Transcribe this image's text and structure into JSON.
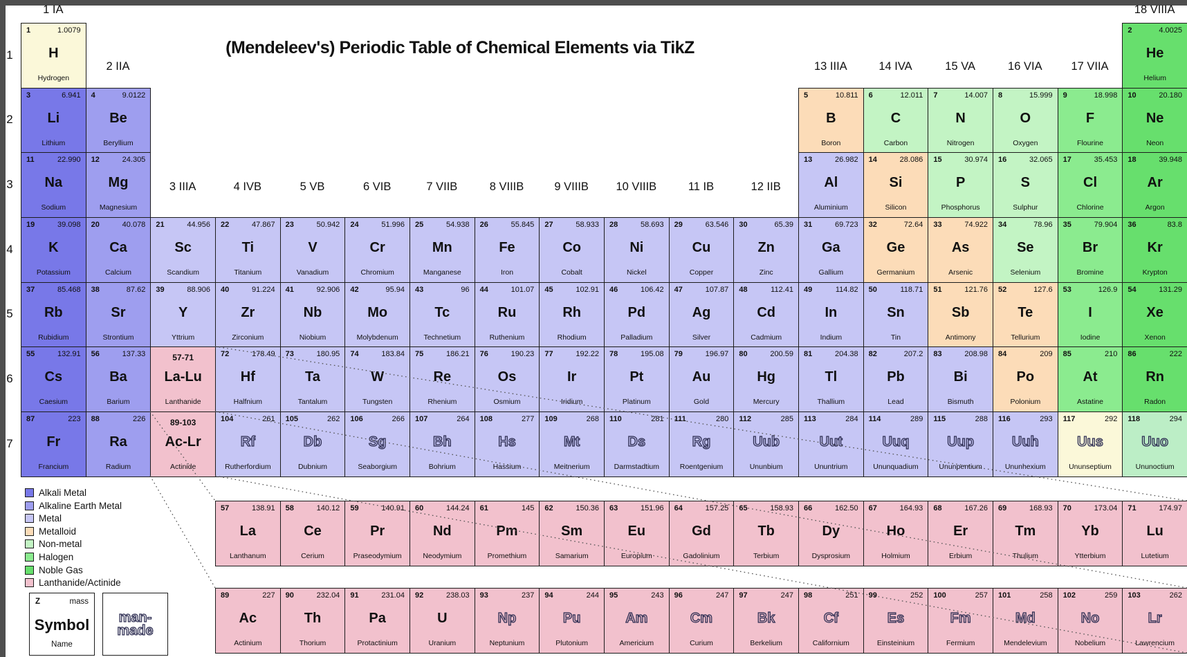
{
  "title": "(Mendeleev's) Periodic Table of Chemical Elements via TikZ",
  "colors": {
    "element": "#FBF8D9",
    "alkali": "#7878E8",
    "alkearth": "#9E9EEF",
    "metal": "#C6C6F5",
    "metalloid": "#FCDCB8",
    "nonmetal": "#C3F4C4",
    "halogen": "#8BEB8F",
    "noble": "#67DF6D",
    "noble_light": "#BCEEC6",
    "series": "#F2C1CD",
    "border": "#1C1C1C",
    "edge_strip": "#4E4E4E",
    "dotted_line": "#555555"
  },
  "period_labels": [
    "1",
    "2",
    "3",
    "4",
    "5",
    "6",
    "7"
  ],
  "group_labels": [
    {
      "c": 1,
      "band": "t",
      "label": "1 IA"
    },
    {
      "c": 18,
      "band": "t",
      "label": "18 VIIIA"
    },
    {
      "c": 2,
      "band": "m1",
      "label": "2 IIA"
    },
    {
      "c": 13,
      "band": "m1",
      "label": "13 IIIA"
    },
    {
      "c": 14,
      "band": "m1",
      "label": "14 IVA"
    },
    {
      "c": 15,
      "band": "m1",
      "label": "15 VA"
    },
    {
      "c": 16,
      "band": "m1",
      "label": "16 VIA"
    },
    {
      "c": 17,
      "band": "m1",
      "label": "17 VIIA"
    },
    {
      "c": 3,
      "band": "m3",
      "label": "3 IIIA"
    },
    {
      "c": 4,
      "band": "m3",
      "label": "4 IVB"
    },
    {
      "c": 5,
      "band": "m3",
      "label": "5 VB"
    },
    {
      "c": 6,
      "band": "m3",
      "label": "6 VIB"
    },
    {
      "c": 7,
      "band": "m3",
      "label": "7 VIIB"
    },
    {
      "c": 8,
      "band": "m3",
      "label": "8 VIIIB"
    },
    {
      "c": 9,
      "band": "m3",
      "label": "9 VIIIB"
    },
    {
      "c": 10,
      "band": "m3",
      "label": "10 VIIIB"
    },
    {
      "c": 11,
      "band": "m3",
      "label": "11 IB"
    },
    {
      "c": 12,
      "band": "m3",
      "label": "12 IIB"
    }
  ],
  "elements_schema": [
    "row",
    "col",
    "number",
    "mass",
    "symbol",
    "name",
    "category",
    "man_made"
  ],
  "elements": [
    [
      1,
      1,
      "1",
      "1.0079",
      "H",
      "Hydrogen",
      "element",
      0
    ],
    [
      1,
      18,
      "2",
      "4.0025",
      "He",
      "Helium",
      "noble",
      0
    ],
    [
      2,
      1,
      "3",
      "6.941",
      "Li",
      "Lithium",
      "alkali",
      0
    ],
    [
      2,
      2,
      "4",
      "9.0122",
      "Be",
      "Beryllium",
      "alkearth",
      0
    ],
    [
      2,
      13,
      "5",
      "10.811",
      "B",
      "Boron",
      "metalloid",
      0
    ],
    [
      2,
      14,
      "6",
      "12.011",
      "C",
      "Carbon",
      "nonmetal",
      0
    ],
    [
      2,
      15,
      "7",
      "14.007",
      "N",
      "Nitrogen",
      "nonmetal",
      0
    ],
    [
      2,
      16,
      "8",
      "15.999",
      "O",
      "Oxygen",
      "nonmetal",
      0
    ],
    [
      2,
      17,
      "9",
      "18.998",
      "F",
      "Flourine",
      "halogen",
      0
    ],
    [
      2,
      18,
      "10",
      "20.180",
      "Ne",
      "Neon",
      "noble",
      0
    ],
    [
      3,
      1,
      "11",
      "22.990",
      "Na",
      "Sodium",
      "alkali",
      0
    ],
    [
      3,
      2,
      "12",
      "24.305",
      "Mg",
      "Magnesium",
      "alkearth",
      0
    ],
    [
      3,
      13,
      "13",
      "26.982",
      "Al",
      "Aluminium",
      "metal",
      0
    ],
    [
      3,
      14,
      "14",
      "28.086",
      "Si",
      "Silicon",
      "metalloid",
      0
    ],
    [
      3,
      15,
      "15",
      "30.974",
      "P",
      "Phosphorus",
      "nonmetal",
      0
    ],
    [
      3,
      16,
      "16",
      "32.065",
      "S",
      "Sulphur",
      "nonmetal",
      0
    ],
    [
      3,
      17,
      "17",
      "35.453",
      "Cl",
      "Chlorine",
      "halogen",
      0
    ],
    [
      3,
      18,
      "18",
      "39.948",
      "Ar",
      "Argon",
      "noble",
      0
    ],
    [
      4,
      1,
      "19",
      "39.098",
      "K",
      "Potassium",
      "alkali",
      0
    ],
    [
      4,
      2,
      "20",
      "40.078",
      "Ca",
      "Calcium",
      "alkearth",
      0
    ],
    [
      4,
      3,
      "21",
      "44.956",
      "Sc",
      "Scandium",
      "metal",
      0
    ],
    [
      4,
      4,
      "22",
      "47.867",
      "Ti",
      "Titanium",
      "metal",
      0
    ],
    [
      4,
      5,
      "23",
      "50.942",
      "V",
      "Vanadium",
      "metal",
      0
    ],
    [
      4,
      6,
      "24",
      "51.996",
      "Cr",
      "Chromium",
      "metal",
      0
    ],
    [
      4,
      7,
      "25",
      "54.938",
      "Mn",
      "Manganese",
      "metal",
      0
    ],
    [
      4,
      8,
      "26",
      "55.845",
      "Fe",
      "Iron",
      "metal",
      0
    ],
    [
      4,
      9,
      "27",
      "58.933",
      "Co",
      "Cobalt",
      "metal",
      0
    ],
    [
      4,
      10,
      "28",
      "58.693",
      "Ni",
      "Nickel",
      "metal",
      0
    ],
    [
      4,
      11,
      "29",
      "63.546",
      "Cu",
      "Copper",
      "metal",
      0
    ],
    [
      4,
      12,
      "30",
      "65.39",
      "Zn",
      "Zinc",
      "metal",
      0
    ],
    [
      4,
      13,
      "31",
      "69.723",
      "Ga",
      "Gallium",
      "metal",
      0
    ],
    [
      4,
      14,
      "32",
      "72.64",
      "Ge",
      "Germanium",
      "metalloid",
      0
    ],
    [
      4,
      15,
      "33",
      "74.922",
      "As",
      "Arsenic",
      "metalloid",
      0
    ],
    [
      4,
      16,
      "34",
      "78.96",
      "Se",
      "Selenium",
      "nonmetal",
      0
    ],
    [
      4,
      17,
      "35",
      "79.904",
      "Br",
      "Bromine",
      "halogen",
      0
    ],
    [
      4,
      18,
      "36",
      "83.8",
      "Kr",
      "Krypton",
      "noble",
      0
    ],
    [
      5,
      1,
      "37",
      "85.468",
      "Rb",
      "Rubidium",
      "alkali",
      0
    ],
    [
      5,
      2,
      "38",
      "87.62",
      "Sr",
      "Strontium",
      "alkearth",
      0
    ],
    [
      5,
      3,
      "39",
      "88.906",
      "Y",
      "Yttrium",
      "metal",
      0
    ],
    [
      5,
      4,
      "40",
      "91.224",
      "Zr",
      "Zirconium",
      "metal",
      0
    ],
    [
      5,
      5,
      "41",
      "92.906",
      "Nb",
      "Niobium",
      "metal",
      0
    ],
    [
      5,
      6,
      "42",
      "95.94",
      "Mo",
      "Molybdenum",
      "metal",
      0
    ],
    [
      5,
      7,
      "43",
      "96",
      "Tc",
      "Technetium",
      "metal",
      0
    ],
    [
      5,
      8,
      "44",
      "101.07",
      "Ru",
      "Ruthenium",
      "metal",
      0
    ],
    [
      5,
      9,
      "45",
      "102.91",
      "Rh",
      "Rhodium",
      "metal",
      0
    ],
    [
      5,
      10,
      "46",
      "106.42",
      "Pd",
      "Palladium",
      "metal",
      0
    ],
    [
      5,
      11,
      "47",
      "107.87",
      "Ag",
      "Silver",
      "metal",
      0
    ],
    [
      5,
      12,
      "48",
      "112.41",
      "Cd",
      "Cadmium",
      "metal",
      0
    ],
    [
      5,
      13,
      "49",
      "114.82",
      "In",
      "Indium",
      "metal",
      0
    ],
    [
      5,
      14,
      "50",
      "118.71",
      "Sn",
      "Tin",
      "metal",
      0
    ],
    [
      5,
      15,
      "51",
      "121.76",
      "Sb",
      "Antimony",
      "metalloid",
      0
    ],
    [
      5,
      16,
      "52",
      "127.6",
      "Te",
      "Tellurium",
      "metalloid",
      0
    ],
    [
      5,
      17,
      "53",
      "126.9",
      "I",
      "Iodine",
      "halogen",
      0
    ],
    [
      5,
      18,
      "54",
      "131.29",
      "Xe",
      "Xenon",
      "noble",
      0
    ],
    [
      6,
      1,
      "55",
      "132.91",
      "Cs",
      "Caesium",
      "alkali",
      0
    ],
    [
      6,
      2,
      "56",
      "137.33",
      "Ba",
      "Barium",
      "alkearth",
      0
    ],
    [
      6,
      4,
      "72",
      "178.49",
      "Hf",
      "Halfnium",
      "metal",
      0
    ],
    [
      6,
      5,
      "73",
      "180.95",
      "Ta",
      "Tantalum",
      "metal",
      0
    ],
    [
      6,
      6,
      "74",
      "183.84",
      "W",
      "Tungsten",
      "metal",
      0
    ],
    [
      6,
      7,
      "75",
      "186.21",
      "Re",
      "Rhenium",
      "metal",
      0
    ],
    [
      6,
      8,
      "76",
      "190.23",
      "Os",
      "Osmium",
      "metal",
      0
    ],
    [
      6,
      9,
      "77",
      "192.22",
      "Ir",
      "Iridium",
      "metal",
      0
    ],
    [
      6,
      10,
      "78",
      "195.08",
      "Pt",
      "Platinum",
      "metal",
      0
    ],
    [
      6,
      11,
      "79",
      "196.97",
      "Au",
      "Gold",
      "metal",
      0
    ],
    [
      6,
      12,
      "80",
      "200.59",
      "Hg",
      "Mercury",
      "metal",
      0
    ],
    [
      6,
      13,
      "81",
      "204.38",
      "Tl",
      "Thallium",
      "metal",
      0
    ],
    [
      6,
      14,
      "82",
      "207.2",
      "Pb",
      "Lead",
      "metal",
      0
    ],
    [
      6,
      15,
      "83",
      "208.98",
      "Bi",
      "Bismuth",
      "metal",
      0
    ],
    [
      6,
      16,
      "84",
      "209",
      "Po",
      "Polonium",
      "metalloid",
      0
    ],
    [
      6,
      17,
      "85",
      "210",
      "At",
      "Astatine",
      "halogen",
      0
    ],
    [
      6,
      18,
      "86",
      "222",
      "Rn",
      "Radon",
      "noble",
      0
    ],
    [
      7,
      1,
      "87",
      "223",
      "Fr",
      "Francium",
      "alkali",
      0
    ],
    [
      7,
      2,
      "88",
      "226",
      "Ra",
      "Radium",
      "alkearth",
      0
    ],
    [
      7,
      4,
      "104",
      "261",
      "Rf",
      "Rutherfordium",
      "metal",
      1
    ],
    [
      7,
      5,
      "105",
      "262",
      "Db",
      "Dubnium",
      "metal",
      1
    ],
    [
      7,
      6,
      "106",
      "266",
      "Sg",
      "Seaborgium",
      "metal",
      1
    ],
    [
      7,
      7,
      "107",
      "264",
      "Bh",
      "Bohrium",
      "metal",
      1
    ],
    [
      7,
      8,
      "108",
      "277",
      "Hs",
      "Hassium",
      "metal",
      1
    ],
    [
      7,
      9,
      "109",
      "268",
      "Mt",
      "Meitnerium",
      "metal",
      1
    ],
    [
      7,
      10,
      "110",
      "281",
      "Ds",
      "Darmstadtium",
      "metal",
      1
    ],
    [
      7,
      11,
      "111",
      "280",
      "Rg",
      "Roentgenium",
      "metal",
      1
    ],
    [
      7,
      12,
      "112",
      "285",
      "Uub",
      "Ununbium",
      "metal",
      1
    ],
    [
      7,
      13,
      "113",
      "284",
      "Uut",
      "Ununtrium",
      "metal",
      1
    ],
    [
      7,
      14,
      "114",
      "289",
      "Uuq",
      "Ununquadium",
      "metal",
      1
    ],
    [
      7,
      15,
      "115",
      "288",
      "Uup",
      "Ununpentium",
      "metal",
      1
    ],
    [
      7,
      16,
      "116",
      "293",
      "Uuh",
      "Ununhexium",
      "metal",
      1
    ],
    [
      7,
      17,
      "117",
      "292",
      "Uus",
      "Ununseptium",
      "element",
      1
    ],
    [
      7,
      18,
      "118",
      "294",
      "Uuo",
      "Ununoctium",
      "noble_light",
      1
    ]
  ],
  "series_cells": [
    {
      "row": 6,
      "col": 3,
      "range": "57-71",
      "symbol": "La-Lu",
      "name": "Lanthanide"
    },
    {
      "row": 7,
      "col": 3,
      "range": "89-103",
      "symbol": "Ac-Lr",
      "name": "Actinide"
    }
  ],
  "lanthanides": [
    [
      "57",
      "138.91",
      "La",
      "Lanthanum",
      0
    ],
    [
      "58",
      "140.12",
      "Ce",
      "Cerium",
      0
    ],
    [
      "59",
      "140.91",
      "Pr",
      "Praseodymium",
      0
    ],
    [
      "60",
      "144.24",
      "Nd",
      "Neodymium",
      0
    ],
    [
      "61",
      "145",
      "Pm",
      "Promethium",
      0
    ],
    [
      "62",
      "150.36",
      "Sm",
      "Samarium",
      0
    ],
    [
      "63",
      "151.96",
      "Eu",
      "Europium",
      0
    ],
    [
      "64",
      "157.25",
      "Gd",
      "Gadolinium",
      0
    ],
    [
      "65",
      "158.93",
      "Tb",
      "Terbium",
      0
    ],
    [
      "66",
      "162.50",
      "Dy",
      "Dysprosium",
      0
    ],
    [
      "67",
      "164.93",
      "Ho",
      "Holmium",
      0
    ],
    [
      "68",
      "167.26",
      "Er",
      "Erbium",
      0
    ],
    [
      "69",
      "168.93",
      "Tm",
      "Thulium",
      0
    ],
    [
      "70",
      "173.04",
      "Yb",
      "Ytterbium",
      0
    ],
    [
      "71",
      "174.97",
      "Lu",
      "Lutetium",
      0
    ]
  ],
  "actinides": [
    [
      "89",
      "227",
      "Ac",
      "Actinium",
      0
    ],
    [
      "90",
      "232.04",
      "Th",
      "Thorium",
      0
    ],
    [
      "91",
      "231.04",
      "Pa",
      "Protactinium",
      0
    ],
    [
      "92",
      "238.03",
      "U",
      "Uranium",
      0
    ],
    [
      "93",
      "237",
      "Np",
      "Neptunium",
      1
    ],
    [
      "94",
      "244",
      "Pu",
      "Plutonium",
      1
    ],
    [
      "95",
      "243",
      "Am",
      "Americium",
      1
    ],
    [
      "96",
      "247",
      "Cm",
      "Curium",
      1
    ],
    [
      "97",
      "247",
      "Bk",
      "Berkelium",
      1
    ],
    [
      "98",
      "251",
      "Cf",
      "Californium",
      1
    ],
    [
      "99",
      "252",
      "Es",
      "Einsteinium",
      1
    ],
    [
      "100",
      "257",
      "Fm",
      "Fermium",
      1
    ],
    [
      "101",
      "258",
      "Md",
      "Mendelevium",
      1
    ],
    [
      "102",
      "259",
      "No",
      "Nobelium",
      1
    ],
    [
      "103",
      "262",
      "Lr",
      "Lawrencium",
      1
    ]
  ],
  "legend": [
    {
      "label": "Alkali Metal",
      "color_key": "alkali"
    },
    {
      "label": "Alkaline Earth Metal",
      "color_key": "alkearth"
    },
    {
      "label": "Metal",
      "color_key": "metal"
    },
    {
      "label": "Metalloid",
      "color_key": "metalloid"
    },
    {
      "label": "Non-metal",
      "color_key": "nonmetal"
    },
    {
      "label": "Halogen",
      "color_key": "halogen"
    },
    {
      "label": "Noble Gas",
      "color_key": "noble"
    },
    {
      "label": "Lanthanide/Actinide",
      "color_key": "series"
    }
  ],
  "key_box": {
    "z": "Z",
    "mass": "mass",
    "symbol": "Symbol",
    "name": "Name"
  },
  "manmade_box": {
    "line1": "man-",
    "line2": "made"
  },
  "dotted_lines": [
    [
      217,
      595,
      311,
      724
    ],
    [
      311,
      501,
      1716,
      724
    ],
    [
      217,
      688,
      311,
      850
    ],
    [
      311,
      595,
      1716,
      850
    ],
    [
      311,
      688,
      1716,
      944
    ]
  ]
}
